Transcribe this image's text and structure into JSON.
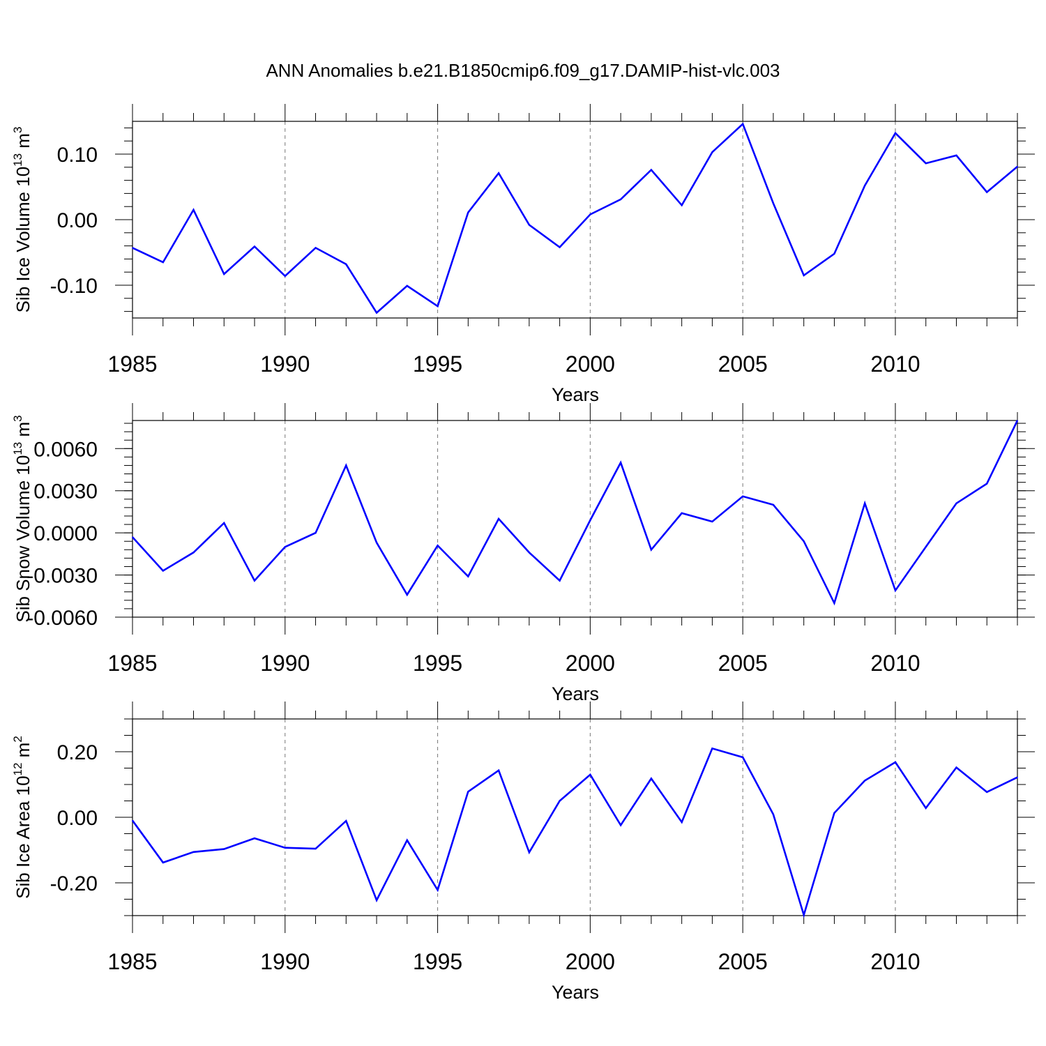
{
  "figure_title": "ANN Anomalies b.e21.B1850cmip6.f09_g17.DAMIP-hist-vlc.003",
  "chart_data": [
    {
      "type": "line",
      "name": "sib-ice-volume",
      "ylabel": "Sib Ice Volume 10",
      "ylabel_exp": "13",
      "ylabel_unit": " m",
      "ylabel_unit_exp": "3",
      "xlabel": "Years",
      "xlim": [
        1985,
        2014
      ],
      "ylim": [
        -0.15,
        0.15
      ],
      "xticks": [
        "1985",
        "1990",
        "1995",
        "2000",
        "2005",
        "2010"
      ],
      "xtick_values": [
        1985,
        1990,
        1995,
        2000,
        2005,
        2010
      ],
      "yticks": [
        "0.10",
        "0.00",
        "-0.10"
      ],
      "ytick_values": [
        0.1,
        0.0,
        -0.1
      ],
      "yminor_step": 0.02,
      "color": "#0000ff",
      "x": [
        1985,
        1986,
        1987,
        1988,
        1989,
        1990,
        1991,
        1992,
        1993,
        1994,
        1995,
        1996,
        1997,
        1998,
        1999,
        2000,
        2001,
        2002,
        2003,
        2004,
        2005,
        2006,
        2007,
        2008,
        2009,
        2010,
        2011,
        2012,
        2013,
        2014
      ],
      "y": [
        -0.043,
        -0.065,
        0.015,
        -0.083,
        -0.041,
        -0.086,
        -0.043,
        -0.068,
        -0.142,
        -0.101,
        -0.132,
        0.011,
        0.071,
        -0.008,
        -0.042,
        0.008,
        0.031,
        0.076,
        0.022,
        0.103,
        0.146,
        0.025,
        -0.085,
        -0.052,
        0.052,
        0.132,
        0.086,
        0.098,
        0.042,
        0.081
      ]
    },
    {
      "type": "line",
      "name": "sib-snow-volume",
      "ylabel": "Sib Snow Volume 10",
      "ylabel_exp": "13",
      "ylabel_unit": " m",
      "ylabel_unit_exp": "3",
      "xlabel": "Years",
      "xlim": [
        1985,
        2014
      ],
      "ylim": [
        -0.006,
        0.008
      ],
      "xticks": [
        "1985",
        "1990",
        "1995",
        "2000",
        "2005",
        "2010"
      ],
      "xtick_values": [
        1985,
        1990,
        1995,
        2000,
        2005,
        2010
      ],
      "yticks": [
        "0.0060",
        "0.0030",
        "0.0000",
        "-0.0030",
        "-0.0060"
      ],
      "ytick_values": [
        0.006,
        0.003,
        0.0,
        -0.003,
        -0.006
      ],
      "yminor_step": 0.0006,
      "color": "#0000ff",
      "x": [
        1985,
        1986,
        1987,
        1988,
        1989,
        1990,
        1991,
        1992,
        1993,
        1994,
        1995,
        1996,
        1997,
        1998,
        1999,
        2000,
        2001,
        2002,
        2003,
        2004,
        2005,
        2006,
        2007,
        2008,
        2009,
        2010,
        2011,
        2012,
        2013,
        2014
      ],
      "y": [
        -0.0003,
        -0.0027,
        -0.0014,
        0.0007,
        -0.0034,
        -0.001,
        0.0,
        0.0048,
        -0.0007,
        -0.0044,
        -0.0009,
        -0.0031,
        0.001,
        -0.0014,
        -0.0034,
        0.0009,
        0.005,
        -0.0012,
        0.0014,
        0.0008,
        0.0026,
        0.002,
        -0.0006,
        -0.005,
        0.0021,
        -0.0041,
        -0.001,
        0.0021,
        0.0035,
        0.008
      ]
    },
    {
      "type": "line",
      "name": "sib-ice-area",
      "ylabel": "Sib Ice Area 10",
      "ylabel_exp": "12",
      "ylabel_unit": " m",
      "ylabel_unit_exp": "2",
      "xlabel": "Years",
      "xlim": [
        1985,
        2014
      ],
      "ylim": [
        -0.3,
        0.3
      ],
      "xticks": [
        "1985",
        "1990",
        "1995",
        "2000",
        "2005",
        "2010"
      ],
      "xtick_values": [
        1985,
        1990,
        1995,
        2000,
        2005,
        2010
      ],
      "yticks": [
        "0.20",
        "0.00",
        "-0.20"
      ],
      "ytick_values": [
        0.2,
        0.0,
        -0.2
      ],
      "yminor_step": 0.05,
      "color": "#0000ff",
      "x": [
        1985,
        1986,
        1987,
        1988,
        1989,
        1990,
        1991,
        1992,
        1993,
        1994,
        1995,
        1996,
        1997,
        1998,
        1999,
        2000,
        2001,
        2002,
        2003,
        2004,
        2005,
        2006,
        2007,
        2008,
        2009,
        2010,
        2011,
        2012,
        2013,
        2014
      ],
      "y": [
        -0.01,
        -0.138,
        -0.106,
        -0.097,
        -0.064,
        -0.093,
        -0.096,
        -0.011,
        -0.253,
        -0.07,
        -0.222,
        0.078,
        0.143,
        -0.107,
        0.05,
        0.13,
        -0.024,
        0.118,
        -0.015,
        0.21,
        0.183,
        0.009,
        -0.298,
        0.013,
        0.112,
        0.168,
        0.028,
        0.152,
        0.077,
        0.122
      ]
    }
  ]
}
